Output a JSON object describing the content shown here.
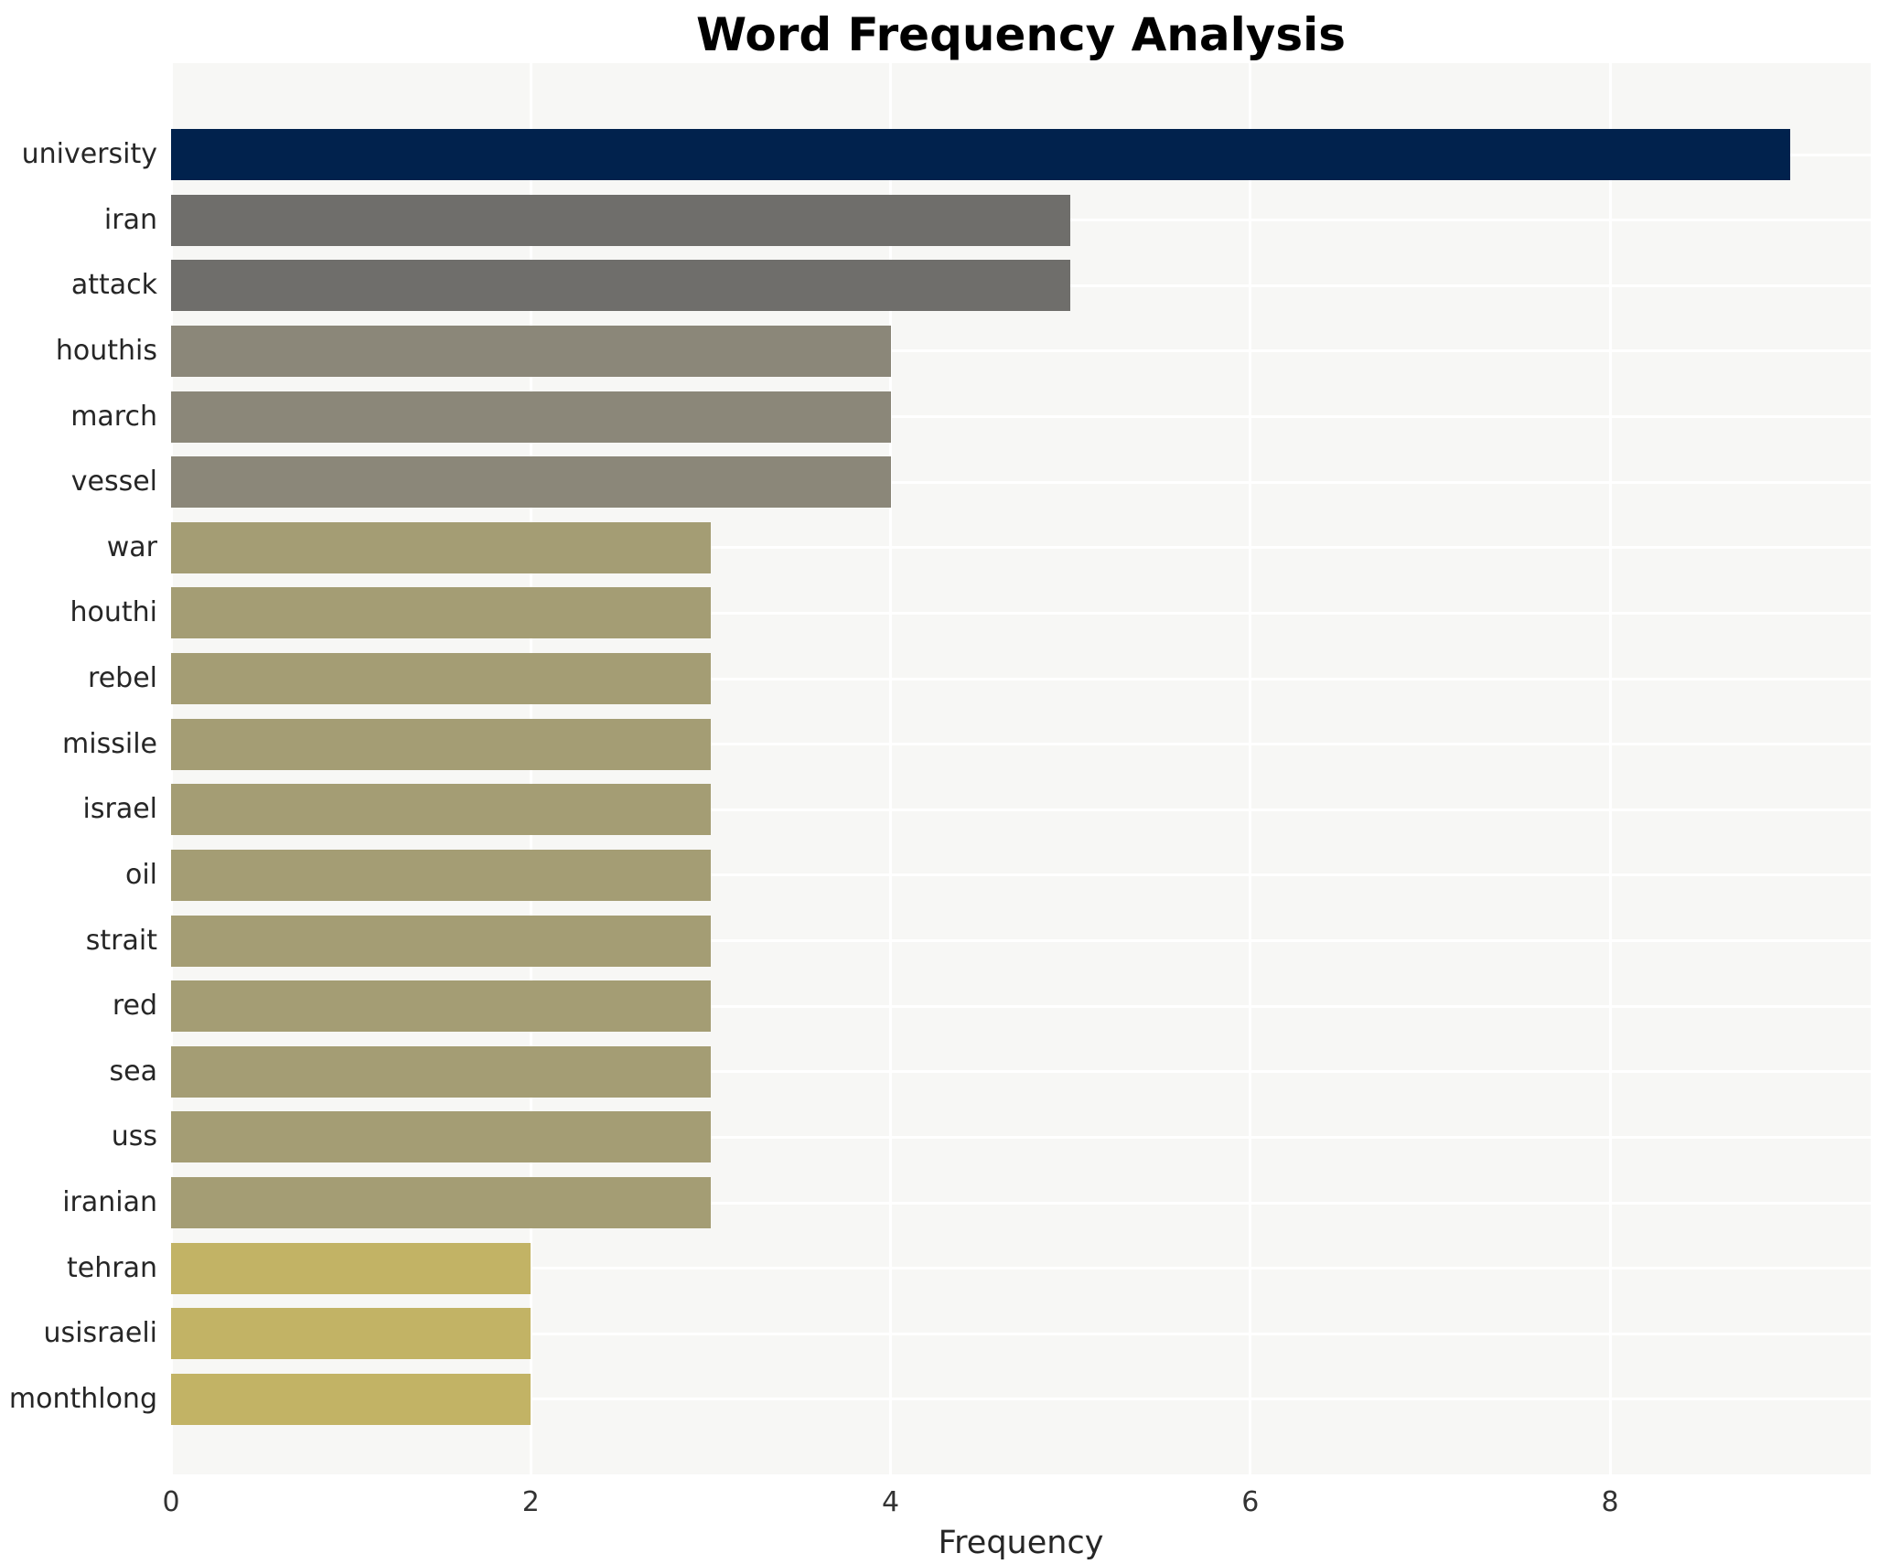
{
  "chart_data": {
    "type": "bar",
    "orientation": "horizontal",
    "title": "Word Frequency Analysis",
    "xlabel": "Frequency",
    "ylabel": "",
    "categories": [
      "university",
      "iran",
      "attack",
      "houthis",
      "march",
      "vessel",
      "war",
      "houthi",
      "rebel",
      "missile",
      "israel",
      "oil",
      "strait",
      "red",
      "sea",
      "uss",
      "iranian",
      "tehran",
      "usisraeli",
      "monthlong"
    ],
    "values": [
      9,
      5,
      5,
      4,
      4,
      4,
      3,
      3,
      3,
      3,
      3,
      3,
      3,
      3,
      3,
      3,
      3,
      2,
      2,
      2
    ],
    "xticks": [
      0,
      2,
      4,
      6,
      8
    ],
    "xlim": [
      0,
      9.45
    ],
    "grid": true,
    "legend": false,
    "value_colors": {
      "9": "#01224d",
      "5": "#6f6e6b",
      "4": "#8b8779",
      "3": "#a49d74",
      "2": "#c2b365"
    },
    "style": {
      "plot_background": "#f7f7f5",
      "grid_color": "#ffffff",
      "title_color": "#000000",
      "label_color": "#262626",
      "tick_color": "#333333"
    }
  }
}
